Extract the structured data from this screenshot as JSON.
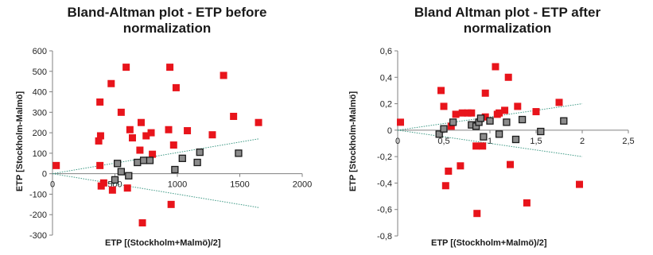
{
  "chart_data": [
    {
      "type": "scatter",
      "title": "Bland-Altman plot - ETP before normalization",
      "xlabel": "ETP [(Stockholm+Malmö)/2]",
      "ylabel": "ETP [Stockholm-Malmö]",
      "xlim": [
        0,
        2000
      ],
      "ylim": [
        -300,
        600
      ],
      "xticks": [
        "0",
        "500",
        "1000",
        "1500",
        "2000"
      ],
      "yticks": [
        "-300",
        "-200",
        "-100",
        "0",
        "100",
        "200",
        "300",
        "400",
        "500",
        "600"
      ],
      "grid": false,
      "colors": {
        "red": "#e8141b",
        "gray": "#8c8c8c",
        "trend": "#3f9a86"
      },
      "series": [
        {
          "marker": "red-square",
          "points": [
            [
              30,
              40
            ],
            [
              370,
              160
            ],
            [
              380,
              350
            ],
            [
              385,
              185
            ],
            [
              380,
              40
            ],
            [
              390,
              -60
            ],
            [
              410,
              -45
            ],
            [
              470,
              440
            ],
            [
              480,
              -80
            ],
            [
              550,
              300
            ],
            [
              590,
              520
            ],
            [
              600,
              -70
            ],
            [
              620,
              215
            ],
            [
              640,
              175
            ],
            [
              700,
              115
            ],
            [
              710,
              250
            ],
            [
              750,
              185
            ],
            [
              790,
              200
            ],
            [
              800,
              95
            ],
            [
              930,
              215
            ],
            [
              940,
              520
            ],
            [
              950,
              -150
            ],
            [
              970,
              140
            ],
            [
              990,
              420
            ],
            [
              1080,
              210
            ],
            [
              1280,
              190
            ],
            [
              1370,
              480
            ],
            [
              1450,
              280
            ],
            [
              1650,
              250
            ],
            [
              720,
              -240
            ]
          ]
        },
        {
          "marker": "gray-square",
          "points": [
            [
              500,
              -30
            ],
            [
              520,
              50
            ],
            [
              550,
              10
            ],
            [
              610,
              -10
            ],
            [
              680,
              55
            ],
            [
              730,
              65
            ],
            [
              780,
              65
            ],
            [
              980,
              20
            ],
            [
              1040,
              75
            ],
            [
              1160,
              55
            ],
            [
              1180,
              105
            ],
            [
              1490,
              100
            ]
          ]
        }
      ],
      "trend_lines": [
        {
          "from": [
            0,
            0
          ],
          "to": [
            1650,
            170
          ]
        },
        {
          "from": [
            0,
            0
          ],
          "to": [
            1650,
            -165
          ]
        }
      ]
    },
    {
      "type": "scatter",
      "title": "Bland Altman plot - ETP after normalization",
      "xlabel": "ETP [(Stockholm+Malmö)/2]",
      "ylabel": "ETP [Stockholm-Malmö]",
      "xlim": [
        0,
        2.5
      ],
      "ylim": [
        -0.8,
        0.6
      ],
      "xticks": [
        "0",
        "0,5",
        "1",
        "1,5",
        "2",
        "2,5"
      ],
      "yticks": [
        "-0,8",
        "-0,6",
        "-0,4",
        "-0,2",
        "0",
        "0,2",
        "0,4",
        "0,6"
      ],
      "grid": false,
      "colors": {
        "red": "#e8141b",
        "gray": "#8c8c8c",
        "trend": "#3f9a86"
      },
      "series": [
        {
          "marker": "red-square",
          "points": [
            [
              0.03,
              0.06
            ],
            [
              0.47,
              0.3
            ],
            [
              0.5,
              0.18
            ],
            [
              0.52,
              -0.42
            ],
            [
              0.55,
              -0.31
            ],
            [
              0.58,
              0.03
            ],
            [
              0.63,
              0.12
            ],
            [
              0.68,
              -0.27
            ],
            [
              0.7,
              0.13
            ],
            [
              0.76,
              0.13
            ],
            [
              0.8,
              0.13
            ],
            [
              0.85,
              -0.12
            ],
            [
              0.86,
              -0.63
            ],
            [
              0.92,
              -0.12
            ],
            [
              0.95,
              0.1
            ],
            [
              0.95,
              0.28
            ],
            [
              1.06,
              0.48
            ],
            [
              1.1,
              0.13
            ],
            [
              1.2,
              0.4
            ],
            [
              1.22,
              -0.26
            ],
            [
              1.3,
              0.18
            ],
            [
              1.4,
              -0.55
            ],
            [
              1.5,
              0.14
            ],
            [
              1.75,
              0.21
            ],
            [
              1.97,
              -0.41
            ],
            [
              1.08,
              0.12
            ],
            [
              1.16,
              0.15
            ]
          ]
        },
        {
          "marker": "gray-square",
          "points": [
            [
              0.45,
              -0.03
            ],
            [
              0.5,
              0.01
            ],
            [
              0.6,
              0.06
            ],
            [
              0.8,
              0.04
            ],
            [
              0.85,
              0.03
            ],
            [
              0.88,
              0.06
            ],
            [
              0.9,
              0.09
            ],
            [
              0.93,
              -0.05
            ],
            [
              1.0,
              0.07
            ],
            [
              1.1,
              -0.03
            ],
            [
              1.18,
              0.06
            ],
            [
              1.28,
              -0.07
            ],
            [
              1.55,
              -0.01
            ],
            [
              1.8,
              0.07
            ],
            [
              1.35,
              0.08
            ]
          ]
        }
      ],
      "trend_lines": [
        {
          "from": [
            0,
            0
          ],
          "to": [
            2,
            0.2
          ]
        },
        {
          "from": [
            0,
            0
          ],
          "to": [
            2,
            -0.2
          ]
        }
      ]
    }
  ]
}
